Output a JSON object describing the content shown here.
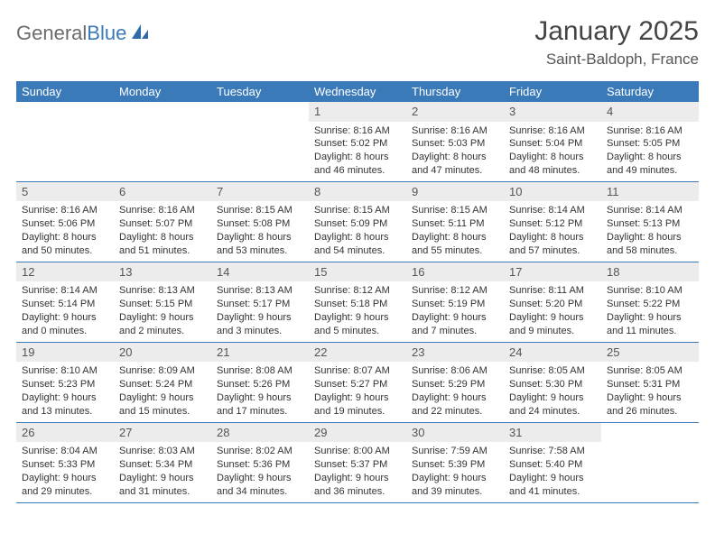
{
  "logo": {
    "text_gray": "General",
    "text_blue": "Blue"
  },
  "title": "January 2025",
  "location": "Saint-Baldoph, France",
  "colors": {
    "header_bg": "#3b7ab8",
    "header_text": "#ffffff",
    "daynum_bg": "#ececec",
    "daynum_text": "#555555",
    "cell_text": "#333333",
    "row_border": "#3b7ab8",
    "page_bg": "#ffffff"
  },
  "day_headers": [
    "Sunday",
    "Monday",
    "Tuesday",
    "Wednesday",
    "Thursday",
    "Friday",
    "Saturday"
  ],
  "weeks": [
    [
      {
        "n": "",
        "sunrise": "",
        "sunset": "",
        "daylight1": "",
        "daylight2": ""
      },
      {
        "n": "",
        "sunrise": "",
        "sunset": "",
        "daylight1": "",
        "daylight2": ""
      },
      {
        "n": "",
        "sunrise": "",
        "sunset": "",
        "daylight1": "",
        "daylight2": ""
      },
      {
        "n": "1",
        "sunrise": "Sunrise: 8:16 AM",
        "sunset": "Sunset: 5:02 PM",
        "daylight1": "Daylight: 8 hours",
        "daylight2": "and 46 minutes."
      },
      {
        "n": "2",
        "sunrise": "Sunrise: 8:16 AM",
        "sunset": "Sunset: 5:03 PM",
        "daylight1": "Daylight: 8 hours",
        "daylight2": "and 47 minutes."
      },
      {
        "n": "3",
        "sunrise": "Sunrise: 8:16 AM",
        "sunset": "Sunset: 5:04 PM",
        "daylight1": "Daylight: 8 hours",
        "daylight2": "and 48 minutes."
      },
      {
        "n": "4",
        "sunrise": "Sunrise: 8:16 AM",
        "sunset": "Sunset: 5:05 PM",
        "daylight1": "Daylight: 8 hours",
        "daylight2": "and 49 minutes."
      }
    ],
    [
      {
        "n": "5",
        "sunrise": "Sunrise: 8:16 AM",
        "sunset": "Sunset: 5:06 PM",
        "daylight1": "Daylight: 8 hours",
        "daylight2": "and 50 minutes."
      },
      {
        "n": "6",
        "sunrise": "Sunrise: 8:16 AM",
        "sunset": "Sunset: 5:07 PM",
        "daylight1": "Daylight: 8 hours",
        "daylight2": "and 51 minutes."
      },
      {
        "n": "7",
        "sunrise": "Sunrise: 8:15 AM",
        "sunset": "Sunset: 5:08 PM",
        "daylight1": "Daylight: 8 hours",
        "daylight2": "and 53 minutes."
      },
      {
        "n": "8",
        "sunrise": "Sunrise: 8:15 AM",
        "sunset": "Sunset: 5:09 PM",
        "daylight1": "Daylight: 8 hours",
        "daylight2": "and 54 minutes."
      },
      {
        "n": "9",
        "sunrise": "Sunrise: 8:15 AM",
        "sunset": "Sunset: 5:11 PM",
        "daylight1": "Daylight: 8 hours",
        "daylight2": "and 55 minutes."
      },
      {
        "n": "10",
        "sunrise": "Sunrise: 8:14 AM",
        "sunset": "Sunset: 5:12 PM",
        "daylight1": "Daylight: 8 hours",
        "daylight2": "and 57 minutes."
      },
      {
        "n": "11",
        "sunrise": "Sunrise: 8:14 AM",
        "sunset": "Sunset: 5:13 PM",
        "daylight1": "Daylight: 8 hours",
        "daylight2": "and 58 minutes."
      }
    ],
    [
      {
        "n": "12",
        "sunrise": "Sunrise: 8:14 AM",
        "sunset": "Sunset: 5:14 PM",
        "daylight1": "Daylight: 9 hours",
        "daylight2": "and 0 minutes."
      },
      {
        "n": "13",
        "sunrise": "Sunrise: 8:13 AM",
        "sunset": "Sunset: 5:15 PM",
        "daylight1": "Daylight: 9 hours",
        "daylight2": "and 2 minutes."
      },
      {
        "n": "14",
        "sunrise": "Sunrise: 8:13 AM",
        "sunset": "Sunset: 5:17 PM",
        "daylight1": "Daylight: 9 hours",
        "daylight2": "and 3 minutes."
      },
      {
        "n": "15",
        "sunrise": "Sunrise: 8:12 AM",
        "sunset": "Sunset: 5:18 PM",
        "daylight1": "Daylight: 9 hours",
        "daylight2": "and 5 minutes."
      },
      {
        "n": "16",
        "sunrise": "Sunrise: 8:12 AM",
        "sunset": "Sunset: 5:19 PM",
        "daylight1": "Daylight: 9 hours",
        "daylight2": "and 7 minutes."
      },
      {
        "n": "17",
        "sunrise": "Sunrise: 8:11 AM",
        "sunset": "Sunset: 5:20 PM",
        "daylight1": "Daylight: 9 hours",
        "daylight2": "and 9 minutes."
      },
      {
        "n": "18",
        "sunrise": "Sunrise: 8:10 AM",
        "sunset": "Sunset: 5:22 PM",
        "daylight1": "Daylight: 9 hours",
        "daylight2": "and 11 minutes."
      }
    ],
    [
      {
        "n": "19",
        "sunrise": "Sunrise: 8:10 AM",
        "sunset": "Sunset: 5:23 PM",
        "daylight1": "Daylight: 9 hours",
        "daylight2": "and 13 minutes."
      },
      {
        "n": "20",
        "sunrise": "Sunrise: 8:09 AM",
        "sunset": "Sunset: 5:24 PM",
        "daylight1": "Daylight: 9 hours",
        "daylight2": "and 15 minutes."
      },
      {
        "n": "21",
        "sunrise": "Sunrise: 8:08 AM",
        "sunset": "Sunset: 5:26 PM",
        "daylight1": "Daylight: 9 hours",
        "daylight2": "and 17 minutes."
      },
      {
        "n": "22",
        "sunrise": "Sunrise: 8:07 AM",
        "sunset": "Sunset: 5:27 PM",
        "daylight1": "Daylight: 9 hours",
        "daylight2": "and 19 minutes."
      },
      {
        "n": "23",
        "sunrise": "Sunrise: 8:06 AM",
        "sunset": "Sunset: 5:29 PM",
        "daylight1": "Daylight: 9 hours",
        "daylight2": "and 22 minutes."
      },
      {
        "n": "24",
        "sunrise": "Sunrise: 8:05 AM",
        "sunset": "Sunset: 5:30 PM",
        "daylight1": "Daylight: 9 hours",
        "daylight2": "and 24 minutes."
      },
      {
        "n": "25",
        "sunrise": "Sunrise: 8:05 AM",
        "sunset": "Sunset: 5:31 PM",
        "daylight1": "Daylight: 9 hours",
        "daylight2": "and 26 minutes."
      }
    ],
    [
      {
        "n": "26",
        "sunrise": "Sunrise: 8:04 AM",
        "sunset": "Sunset: 5:33 PM",
        "daylight1": "Daylight: 9 hours",
        "daylight2": "and 29 minutes."
      },
      {
        "n": "27",
        "sunrise": "Sunrise: 8:03 AM",
        "sunset": "Sunset: 5:34 PM",
        "daylight1": "Daylight: 9 hours",
        "daylight2": "and 31 minutes."
      },
      {
        "n": "28",
        "sunrise": "Sunrise: 8:02 AM",
        "sunset": "Sunset: 5:36 PM",
        "daylight1": "Daylight: 9 hours",
        "daylight2": "and 34 minutes."
      },
      {
        "n": "29",
        "sunrise": "Sunrise: 8:00 AM",
        "sunset": "Sunset: 5:37 PM",
        "daylight1": "Daylight: 9 hours",
        "daylight2": "and 36 minutes."
      },
      {
        "n": "30",
        "sunrise": "Sunrise: 7:59 AM",
        "sunset": "Sunset: 5:39 PM",
        "daylight1": "Daylight: 9 hours",
        "daylight2": "and 39 minutes."
      },
      {
        "n": "31",
        "sunrise": "Sunrise: 7:58 AM",
        "sunset": "Sunset: 5:40 PM",
        "daylight1": "Daylight: 9 hours",
        "daylight2": "and 41 minutes."
      },
      {
        "n": "",
        "sunrise": "",
        "sunset": "",
        "daylight1": "",
        "daylight2": ""
      }
    ]
  ]
}
